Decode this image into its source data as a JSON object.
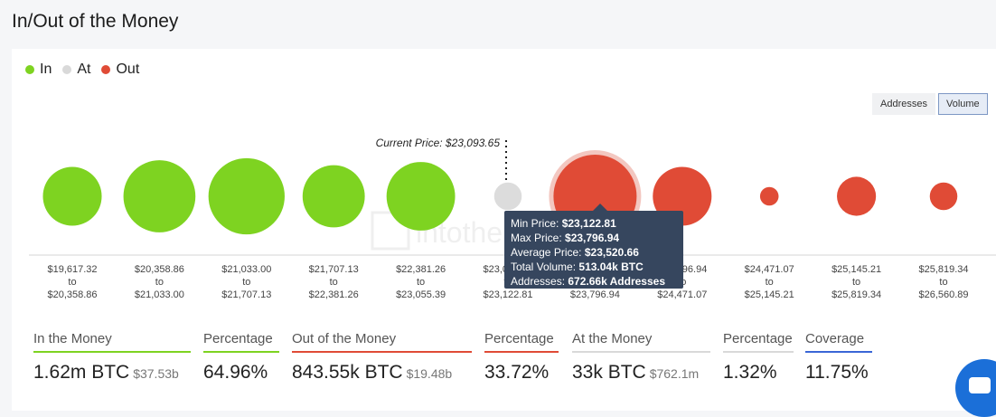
{
  "page": {
    "title": "In/Out of the Money"
  },
  "legend": [
    {
      "label": "In",
      "color": "#7ed321"
    },
    {
      "label": "At",
      "color": "#d9d9d9"
    },
    {
      "label": "Out",
      "color": "#e04b36"
    }
  ],
  "toggle": {
    "addresses_label": "Addresses",
    "volume_label": "Volume",
    "active": "Volume"
  },
  "chart_data": {
    "type": "bubble",
    "metric": "volume",
    "current_price_label": "Current Price: $23,093.65",
    "buckets": [
      {
        "from": "$19,617.32",
        "to": "$20,358.86",
        "status": "in",
        "size": 0.5
      },
      {
        "from": "$20,358.86",
        "to": "$21,033.00",
        "status": "in",
        "size": 0.75
      },
      {
        "from": "$21,033.00",
        "to": "$21,707.13",
        "status": "in",
        "size": 0.84
      },
      {
        "from": "$21,707.13",
        "to": "$22,381.26",
        "status": "in",
        "size": 0.56
      },
      {
        "from": "$22,381.26",
        "to": "$23,055.39",
        "status": "in",
        "size": 0.68
      },
      {
        "from": "$23,055.39",
        "to": "$23,122.81",
        "status": "at",
        "size": 0.11
      },
      {
        "from": "$23,122.81",
        "to": "$23,796.94",
        "status": "out",
        "size": 1.0,
        "highlight": true
      },
      {
        "from": "$23,796.94",
        "to": "$24,471.07",
        "status": "out",
        "size": 0.5
      },
      {
        "from": "$24,471.07",
        "to": "$25,145.21",
        "status": "out",
        "size": 0.05
      },
      {
        "from": "$25,145.21",
        "to": "$25,819.34",
        "status": "out",
        "size": 0.22
      },
      {
        "from": "$25,819.34",
        "to": "$26,560.89",
        "status": "out",
        "size": 0.11
      }
    ],
    "separator": "to"
  },
  "tooltip": {
    "rows": [
      {
        "label": "Min Price:",
        "value": "$23,122.81"
      },
      {
        "label": "Max Price:",
        "value": "$23,796.94"
      },
      {
        "label": "Average Price:",
        "value": "$23,520.66"
      },
      {
        "label": "Total Volume:",
        "value": "513.04k BTC"
      },
      {
        "label": "Addresses:",
        "value": "672.66k Addresses"
      }
    ]
  },
  "stats": {
    "in_money": {
      "label": "In the Money",
      "value": "1.62m BTC",
      "sub": "$37.53b",
      "color": "#7ed321"
    },
    "in_pct": {
      "label": "Percentage",
      "value": "64.96%",
      "color": "#7ed321"
    },
    "out_money": {
      "label": "Out of the Money",
      "value": "843.55k BTC",
      "sub": "$19.48b",
      "color": "#e04b36"
    },
    "out_pct": {
      "label": "Percentage",
      "value": "33.72%",
      "color": "#e04b36"
    },
    "at_money": {
      "label": "At the Money",
      "value": "33k BTC",
      "sub": "$762.1m",
      "color": "#d9d9d9"
    },
    "at_pct": {
      "label": "Percentage",
      "value": "1.32%",
      "color": "#d9d9d9"
    },
    "coverage": {
      "label": "Coverage",
      "value": "11.75%",
      "color": "#3a66d6"
    }
  }
}
